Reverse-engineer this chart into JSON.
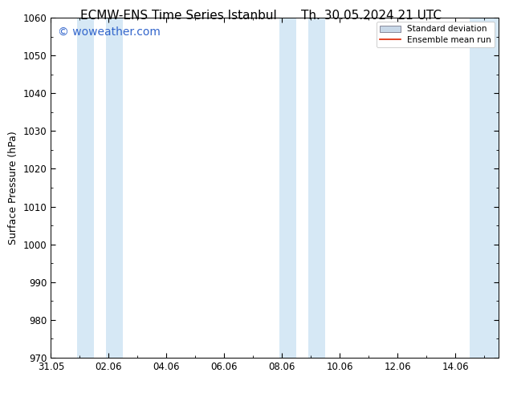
{
  "title_left": "ECMW-ENS Time Series Istanbul",
  "title_right": "Th. 30.05.2024 21 UTC",
  "ylabel": "Surface Pressure (hPa)",
  "ylim": [
    970,
    1060
  ],
  "yticks": [
    970,
    980,
    990,
    1000,
    1010,
    1020,
    1030,
    1040,
    1050,
    1060
  ],
  "xlim_start": 0.0,
  "xlim_end": 15.5,
  "xtick_labels": [
    "31.05",
    "02.06",
    "04.06",
    "06.06",
    "08.06",
    "10.06",
    "12.06",
    "14.06"
  ],
  "xtick_positions": [
    0,
    2,
    4,
    6,
    8,
    10,
    12,
    14
  ],
  "shaded_bands": [
    {
      "x_start": 0.9,
      "x_end": 1.5
    },
    {
      "x_start": 1.9,
      "x_end": 2.5
    },
    {
      "x_start": 7.9,
      "x_end": 8.5
    },
    {
      "x_start": 8.9,
      "x_end": 9.5
    },
    {
      "x_start": 14.5,
      "x_end": 15.5
    }
  ],
  "band_color": "#d6e8f5",
  "watermark": "© woweather.com",
  "watermark_color": "#3366cc",
  "legend_std_label": "Standard deviation",
  "legend_mean_label": "Ensemble mean run",
  "legend_std_facecolor": "#c8d8e8",
  "legend_std_edgecolor": "#888899",
  "legend_mean_color": "#dd2200",
  "bg_color": "#ffffff",
  "spine_color": "#000000",
  "title_fontsize": 11,
  "ylabel_fontsize": 9,
  "tick_fontsize": 8.5,
  "watermark_fontsize": 10,
  "legend_fontsize": 7.5
}
